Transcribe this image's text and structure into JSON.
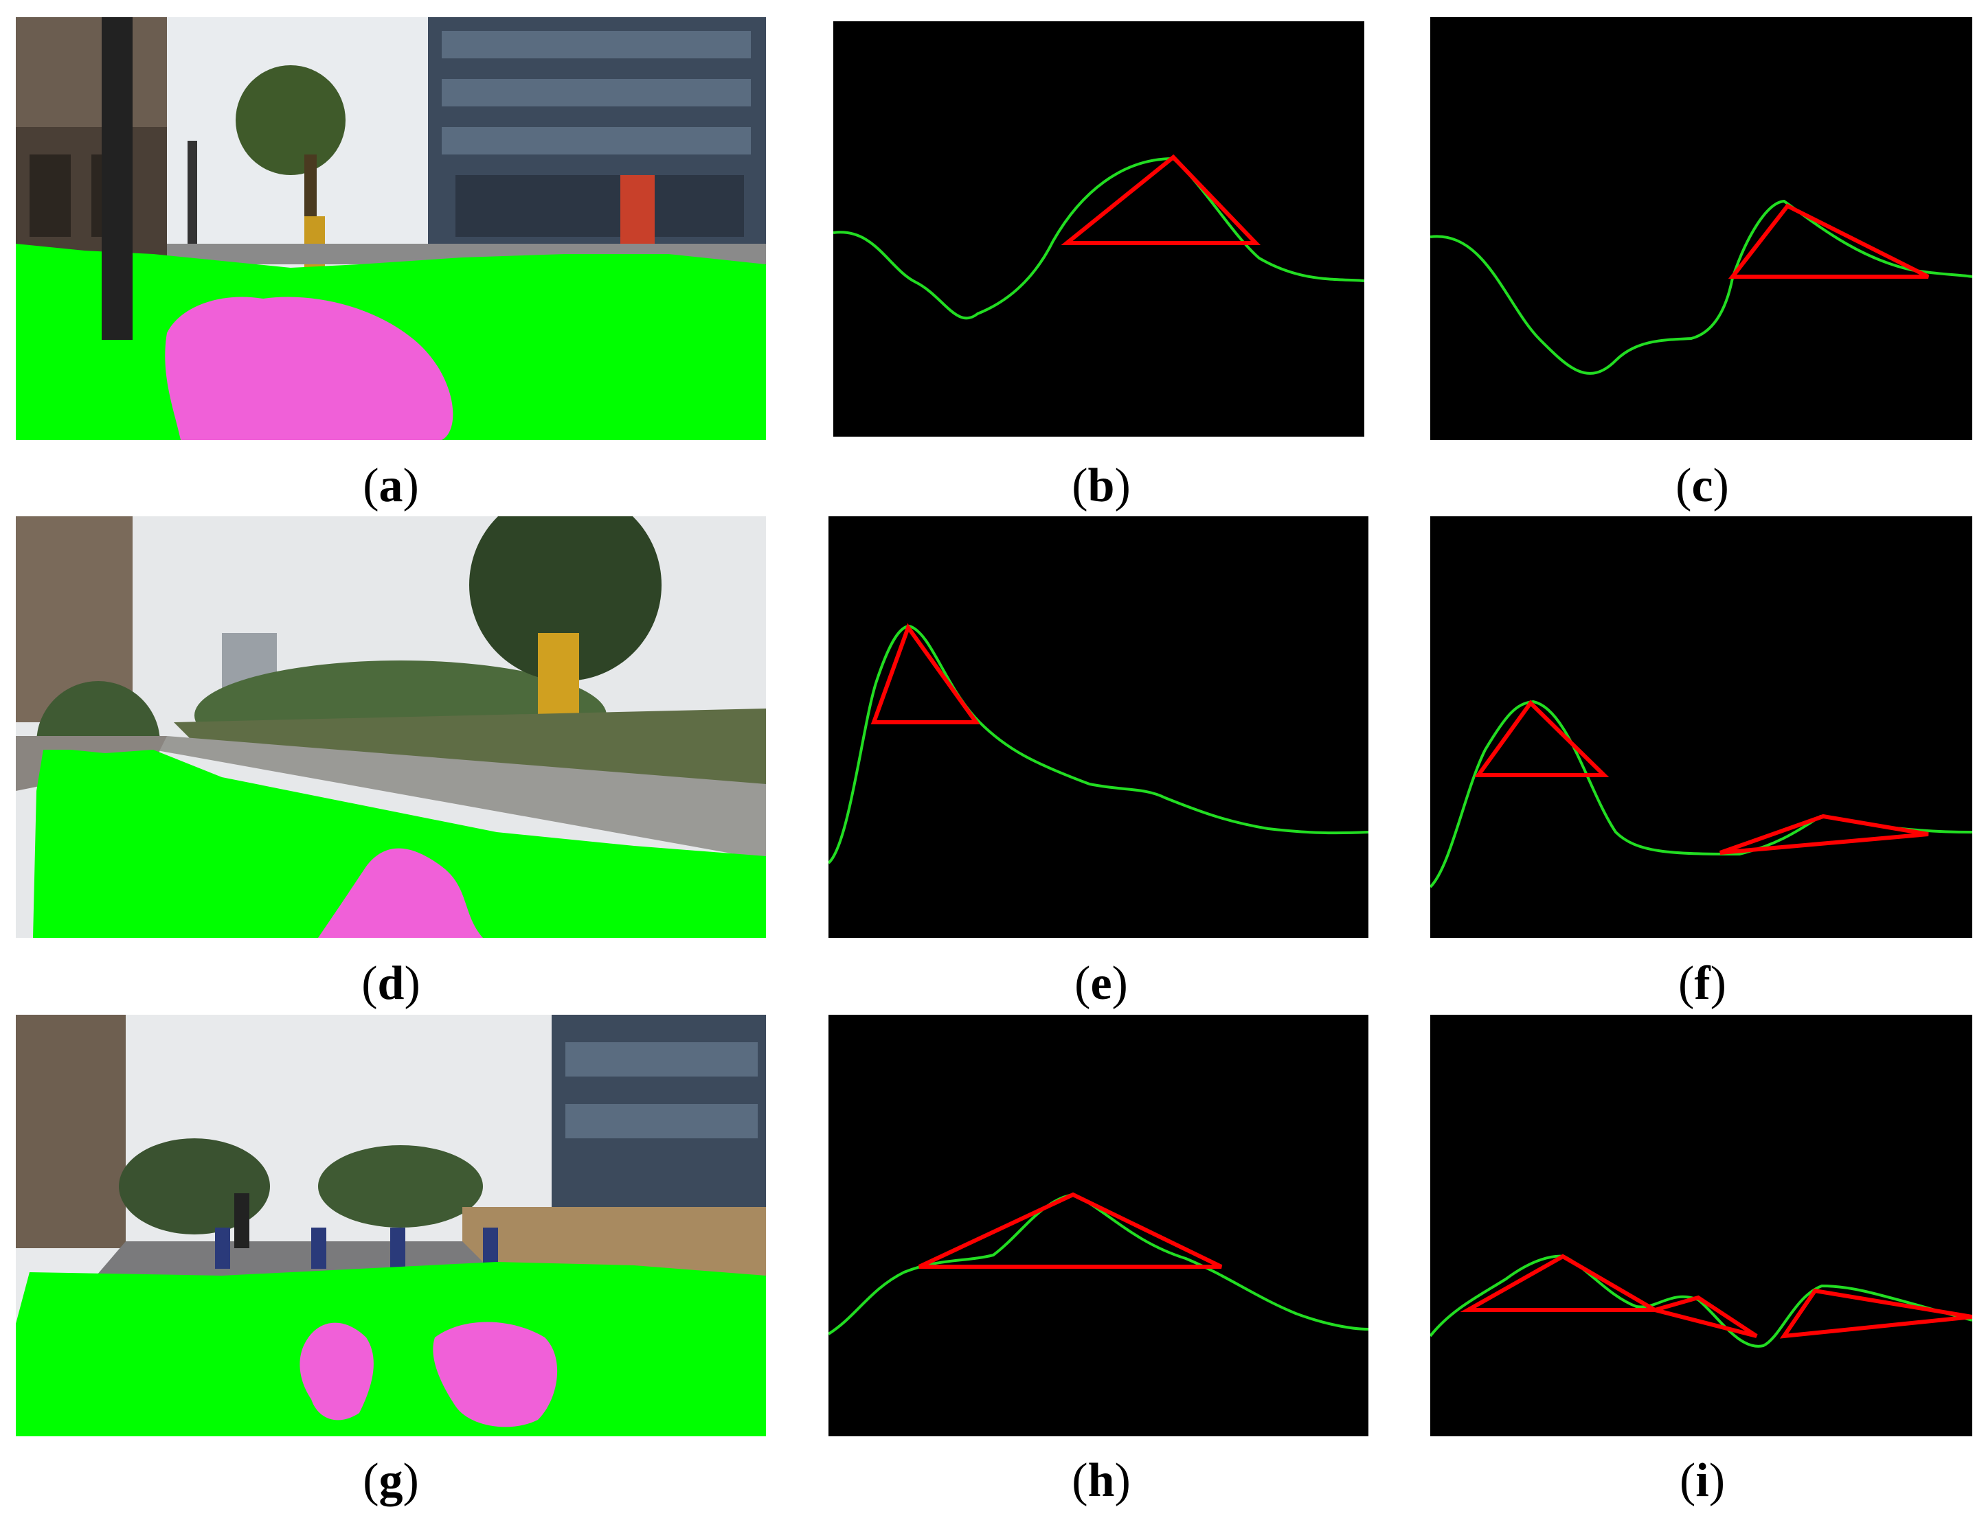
{
  "figure": {
    "panels": [
      {
        "id": "a",
        "kind": "photo",
        "scene": "street with building and tree, ground mask"
      },
      {
        "id": "b",
        "kind": "curve-plot",
        "curve": "green-curve",
        "triangles": 1
      },
      {
        "id": "c",
        "kind": "curve-plot",
        "curve": "green-curve",
        "triangles": 1
      },
      {
        "id": "d",
        "kind": "photo",
        "scene": "curved walkway beside lawn, ground mask"
      },
      {
        "id": "e",
        "kind": "curve-plot",
        "curve": "green-curve",
        "triangles": 1
      },
      {
        "id": "f",
        "kind": "curve-plot",
        "curve": "green-curve",
        "triangles": 2
      },
      {
        "id": "g",
        "kind": "photo",
        "scene": "road with bollards, ground mask"
      },
      {
        "id": "h",
        "kind": "curve-plot",
        "curve": "green-curve",
        "triangles": 1
      },
      {
        "id": "i",
        "kind": "curve-plot",
        "curve": "green-curve",
        "triangles": 3
      }
    ],
    "captions": {
      "a": "a",
      "b": "b",
      "c": "c",
      "d": "d",
      "e": "e",
      "f": "f",
      "g": "g",
      "h": "h",
      "i": "i"
    },
    "colors": {
      "ground_mask": "#00ff00",
      "obstacle_mask": "#f060d8",
      "curve": "#22dd22",
      "triangle": "#ff0000",
      "plot_background": "#000000"
    }
  }
}
